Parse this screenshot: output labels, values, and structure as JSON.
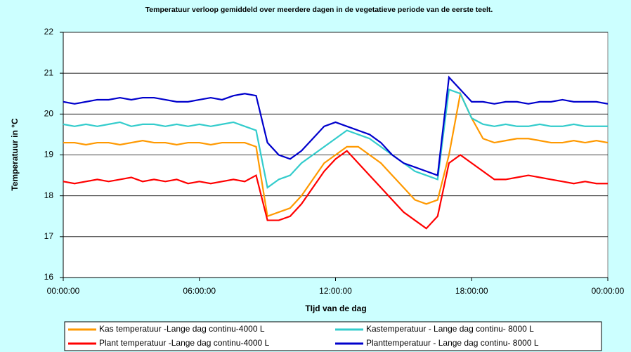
{
  "chart_data": {
    "type": "line",
    "title": "Temperatuur verloop gemiddeld over meerdere dagen in de vegetatieve periode van de eerste  teelt.",
    "x_label": "TIjd van de dag",
    "y_label": "Temperatuur in °C",
    "x": [
      0,
      0.5,
      1,
      1.5,
      2,
      2.5,
      3,
      3.5,
      4,
      4.5,
      5,
      5.5,
      6,
      6.5,
      7,
      7.5,
      8,
      8.5,
      9,
      9.5,
      10,
      10.5,
      11,
      11.5,
      12,
      12.5,
      13,
      13.5,
      14,
      14.5,
      15,
      15.5,
      16,
      16.5,
      17,
      17.5,
      18,
      18.5,
      19,
      19.5,
      20,
      20.5,
      21,
      21.5,
      22,
      22.5,
      23,
      23.5,
      24
    ],
    "series": [
      {
        "name": "Kas temperatuur -Lange dag continu-4000 L",
        "color": "#ff9900",
        "values": [
          19.3,
          19.3,
          19.25,
          19.3,
          19.3,
          19.25,
          19.3,
          19.35,
          19.3,
          19.3,
          19.25,
          19.3,
          19.3,
          19.25,
          19.3,
          19.3,
          19.3,
          19.2,
          17.5,
          17.6,
          17.7,
          18.0,
          18.4,
          18.8,
          19.0,
          19.2,
          19.2,
          19.0,
          18.8,
          18.5,
          18.2,
          17.9,
          17.8,
          17.9,
          19.0,
          20.5,
          19.9,
          19.4,
          19.3,
          19.35,
          19.4,
          19.4,
          19.35,
          19.3,
          19.3,
          19.35,
          19.3,
          19.35,
          19.3
        ]
      },
      {
        "name": "Kastemperatuur - Lange dag continu- 8000 L",
        "color": "#33cccc",
        "values": [
          19.75,
          19.7,
          19.75,
          19.7,
          19.75,
          19.8,
          19.7,
          19.75,
          19.75,
          19.7,
          19.75,
          19.7,
          19.75,
          19.7,
          19.75,
          19.8,
          19.7,
          19.6,
          18.2,
          18.4,
          18.5,
          18.8,
          19.0,
          19.2,
          19.4,
          19.6,
          19.5,
          19.4,
          19.2,
          19.0,
          18.8,
          18.6,
          18.5,
          18.4,
          20.6,
          20.5,
          19.9,
          19.75,
          19.7,
          19.75,
          19.7,
          19.7,
          19.75,
          19.7,
          19.7,
          19.75,
          19.7,
          19.7,
          19.7
        ]
      },
      {
        "name": "Plant temperatuur -Lange dag continu-4000 L",
        "color": "#ff0000",
        "values": [
          18.35,
          18.3,
          18.35,
          18.4,
          18.35,
          18.4,
          18.45,
          18.35,
          18.4,
          18.35,
          18.4,
          18.3,
          18.35,
          18.3,
          18.35,
          18.4,
          18.35,
          18.5,
          17.4,
          17.4,
          17.5,
          17.8,
          18.2,
          18.6,
          18.9,
          19.1,
          18.8,
          18.5,
          18.2,
          17.9,
          17.6,
          17.4,
          17.2,
          17.5,
          18.8,
          19.0,
          18.8,
          18.6,
          18.4,
          18.4,
          18.45,
          18.5,
          18.45,
          18.4,
          18.35,
          18.3,
          18.35,
          18.3,
          18.3
        ]
      },
      {
        "name": "Planttemperatuur - Lange dag continu- 8000 L",
        "color": "#0000cc",
        "values": [
          20.3,
          20.25,
          20.3,
          20.35,
          20.35,
          20.4,
          20.35,
          20.4,
          20.4,
          20.35,
          20.3,
          20.3,
          20.35,
          20.4,
          20.35,
          20.45,
          20.5,
          20.45,
          19.3,
          19.0,
          18.9,
          19.1,
          19.4,
          19.7,
          19.8,
          19.7,
          19.6,
          19.5,
          19.3,
          19.0,
          18.8,
          18.7,
          18.6,
          18.5,
          20.9,
          20.6,
          20.3,
          20.3,
          20.25,
          20.3,
          20.3,
          20.25,
          20.3,
          20.3,
          20.35,
          20.3,
          20.3,
          20.3,
          20.25
        ]
      }
    ],
    "xlim": [
      0,
      24
    ],
    "xticks": [
      {
        "value": 0,
        "label": "00:00:00"
      },
      {
        "value": 6,
        "label": "06:00:00"
      },
      {
        "value": 12,
        "label": "12:00:00"
      },
      {
        "value": 18,
        "label": "18:00:00"
      },
      {
        "value": 24,
        "label": "00:00:00"
      }
    ],
    "ylim": [
      16,
      22
    ],
    "yticks": [
      16,
      17,
      18,
      19,
      20,
      21,
      22
    ],
    "grid": true,
    "legend": "bottom"
  }
}
